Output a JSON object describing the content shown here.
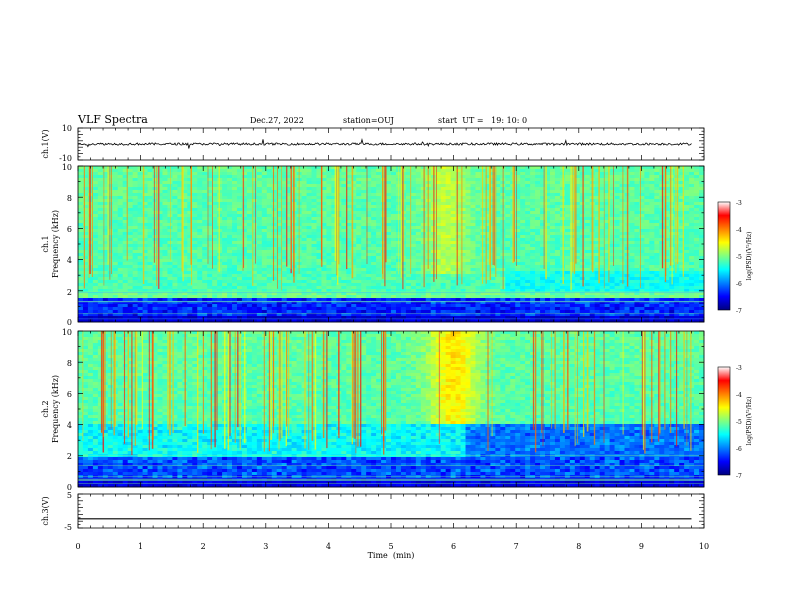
{
  "chart_data": {
    "type": "heatmap",
    "header": {
      "title": "VLF Spectra",
      "date": "Dec.27, 2022",
      "station": "station=OUJ",
      "start_ut": "start  UT =   19: 10: 0"
    },
    "x_axis": {
      "label": "Time  (min)",
      "range": [
        0,
        10
      ],
      "ticks": [
        "0",
        "1",
        "2",
        "3",
        "4",
        "5",
        "6",
        "7",
        "8",
        "9",
        "10"
      ]
    },
    "panels": [
      {
        "id": "ch1-waveform",
        "type": "line",
        "ylabel": "ch.1(V)",
        "ylim": [
          -10,
          10
        ],
        "yticks": [
          "10",
          "-10"
        ],
        "baseline_level": 0
      },
      {
        "id": "ch1-spectrogram",
        "type": "heatmap",
        "ylabel": "ch.1",
        "ylabel2": "Frequency  (kHz)",
        "ylim": [
          0,
          10
        ],
        "yticks": [
          "0",
          "2",
          "4",
          "6",
          "8",
          "10"
        ],
        "colorbar": {
          "label": "log(PSD)(V²/Hz)",
          "range": [
            -7,
            -3
          ],
          "ticks": [
            "-3",
            "-4",
            "-5",
            "-6",
            "-7"
          ]
        }
      },
      {
        "id": "ch2-spectrogram",
        "type": "heatmap",
        "ylabel": "ch.2",
        "ylabel2": "Frequency  (kHz)",
        "ylim": [
          0,
          10
        ],
        "yticks": [
          "0",
          "2",
          "4",
          "6",
          "8",
          "10"
        ],
        "colorbar": {
          "label": "log(PSD)(V²/Hz)",
          "range": [
            -7,
            -3
          ],
          "ticks": [
            "-3",
            "-4",
            "-5",
            "-6",
            "-7"
          ]
        }
      },
      {
        "id": "ch3-waveform",
        "type": "line",
        "ylabel": "ch.3(V)",
        "ylim": [
          -5,
          5
        ],
        "yticks": [
          "5",
          "-5"
        ],
        "baseline_level": -2.3
      }
    ],
    "colormap": [
      "#00007f",
      "#0000ff",
      "#0080ff",
      "#00ffff",
      "#80ff80",
      "#ffff00",
      "#ff8000",
      "#ff0000",
      "#ffffff"
    ]
  }
}
